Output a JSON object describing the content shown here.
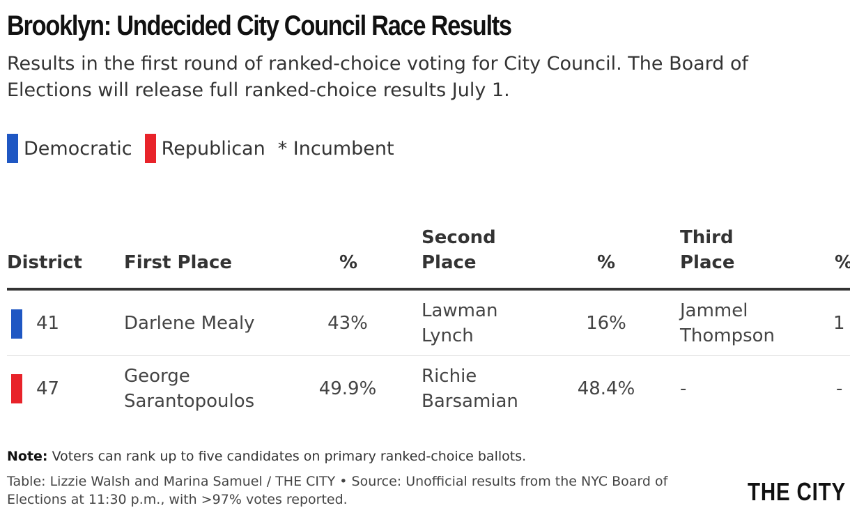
{
  "header": {
    "title": "Brooklyn: Undecided City Council Race Results",
    "subtitle": "Results in the first round of ranked-choice voting for City Council. The Board of Elections will release full ranked-choice results July 1."
  },
  "legend": {
    "items": [
      {
        "label": "Democratic",
        "color": "#1f57c3"
      },
      {
        "label": "Republican",
        "color": "#e8232a"
      }
    ],
    "incumbent_note": "* Incumbent"
  },
  "chart_data": {
    "type": "table",
    "columns": [
      "District",
      "First Place",
      "%",
      "Second\nPlace",
      "%",
      "Third\nPlace",
      "%"
    ],
    "rows": [
      {
        "party": "Democratic",
        "party_color": "#1f57c3",
        "district": "41",
        "first_place": "Darlene Mealy",
        "first_pct": "43%",
        "second_place": "Lawman\nLynch",
        "second_pct": "16%",
        "third_place": "Jammel\nThompson",
        "third_pct": "1"
      },
      {
        "party": "Republican",
        "party_color": "#e8232a",
        "district": "47",
        "first_place": "George\nSarantopoulos",
        "first_pct": "49.9%",
        "second_place": "Richie\nBarsamian",
        "second_pct": "48.4%",
        "third_place": "-",
        "third_pct": "-"
      }
    ]
  },
  "footer": {
    "note_label": "Note:",
    "note_text": " Voters can rank up to five candidates on primary ranked-choice ballots.",
    "source": "Table: Lizzie Walsh and Marina Samuel / THE CITY • Source: Unofficial results from the NYC Board of Elections at 11:30 p.m., with >97% votes reported.",
    "logo": "THE CITY"
  }
}
